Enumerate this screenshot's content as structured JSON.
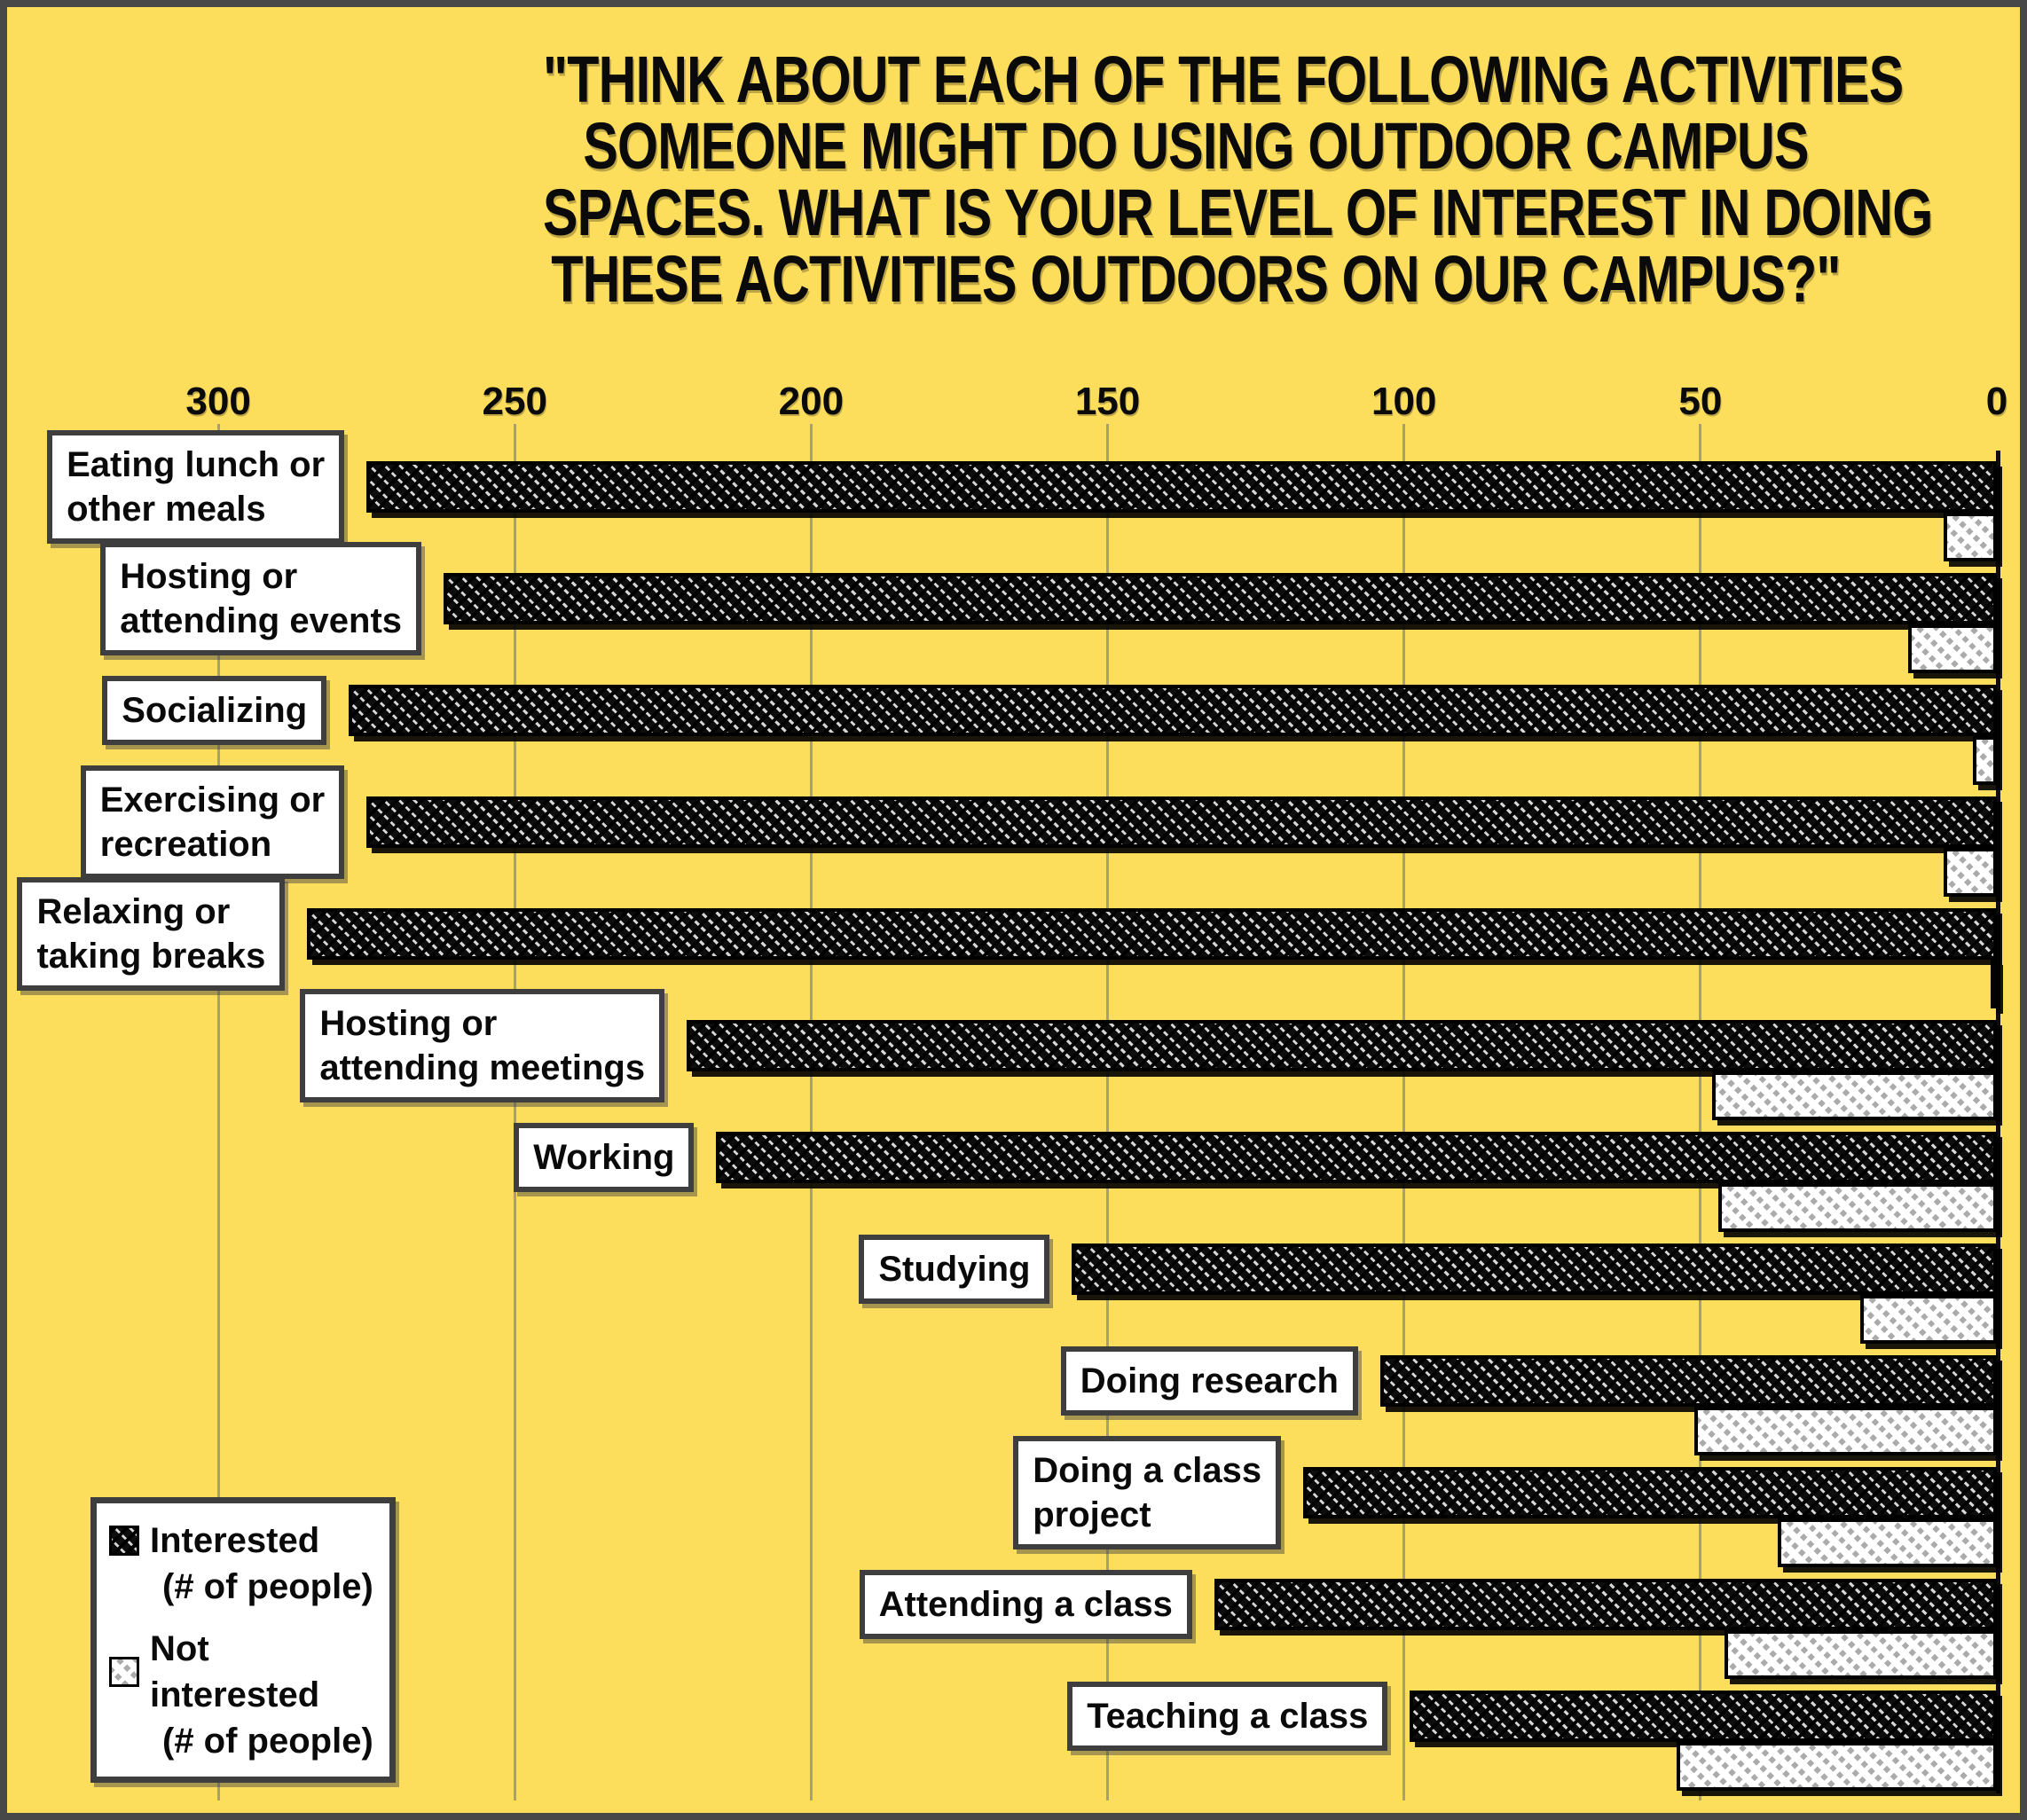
{
  "title": {
    "lines": [
      "\"THINK ABOUT EACH OF THE FOLLOWING ACTIVITIES",
      "SOMEONE MIGHT DO USING OUTDOOR CAMPUS",
      "SPACES. WHAT IS YOUR LEVEL OF INTEREST IN DOING",
      "THESE ACTIVITIES OUTDOORS ON OUR CAMPUS?\""
    ]
  },
  "legend": {
    "entries": [
      {
        "label": "Interested",
        "sub": "(# of people)",
        "swatch": "dark-hatch-swatch"
      },
      {
        "label": "Not interested",
        "sub": "(# of people)",
        "swatch": "light-hatch-swatch"
      }
    ]
  },
  "chart_data": {
    "type": "bar",
    "orientation": "horizontal",
    "title": "\"Think about each of the following activities someone might do using outdoor campus spaces. What is your level of interest in doing these activities outdoors on our campus?\"",
    "xlabel": "# of people",
    "ylabel": "",
    "axis_reversed": true,
    "xlim": [
      300,
      0
    ],
    "axis_ticks": [
      300,
      250,
      200,
      150,
      100,
      50,
      0
    ],
    "grid": true,
    "legend_position": "bottom-left",
    "categories": [
      {
        "label": "Eating lunch or other meals",
        "display": "Eating lunch or\nother meals"
      },
      {
        "label": "Hosting or attending events",
        "display": "Hosting or\nattending events"
      },
      {
        "label": "Socializing",
        "display": "Socializing"
      },
      {
        "label": "Exercising or recreation",
        "display": "Exercising or\nrecreation"
      },
      {
        "label": "Relaxing or taking breaks",
        "display": "Relaxing or\ntaking breaks"
      },
      {
        "label": "Hosting or attending meetings",
        "display": "Hosting or\nattending meetings"
      },
      {
        "label": "Working",
        "display": "Working"
      },
      {
        "label": "Studying",
        "display": "Studying"
      },
      {
        "label": "Doing research",
        "display": "Doing research"
      },
      {
        "label": "Doing a class project",
        "display": "Doing a class\nproject"
      },
      {
        "label": "Attending a class",
        "display": "Attending a class"
      },
      {
        "label": "Teaching a class",
        "display": "Teaching a class"
      }
    ],
    "series": [
      {
        "name": "Interested (# of people)",
        "style": "dark-hatch",
        "values": [
          275,
          262,
          278,
          275,
          285,
          221,
          216,
          156,
          104,
          117,
          132,
          99
        ]
      },
      {
        "name": "Not interested (# of people)",
        "style": "light-hatch",
        "values": [
          9,
          15,
          4,
          9,
          1,
          48,
          47,
          23,
          51,
          37,
          46,
          54
        ]
      }
    ]
  },
  "colors": {
    "background": "#FCDD5C",
    "frame": "#484848",
    "bar_dark": "#0D0D0D",
    "bar_light": "#FFFFFF",
    "gridline": "#A89E79",
    "label_border": "#3E3E3E",
    "text": "#0A0A0A"
  }
}
